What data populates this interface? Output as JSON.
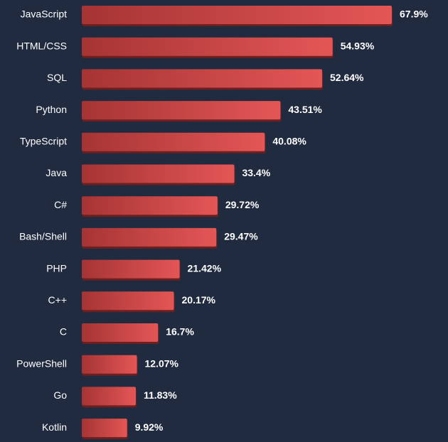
{
  "colors": {
    "background": "#212b40",
    "bar_start": "#a63434",
    "bar_end": "#e45656",
    "bar_shadow": "#6e1f1f",
    "text": "#ffffff"
  },
  "chart_data": {
    "type": "bar",
    "orientation": "horizontal",
    "title": "",
    "xlabel": "",
    "ylabel": "",
    "xlim": [
      0,
      67.9
    ],
    "grid": false,
    "legend": "none",
    "categories": [
      "JavaScript",
      "HTML/CSS",
      "SQL",
      "Python",
      "TypeScript",
      "Java",
      "C#",
      "Bash/Shell",
      "PHP",
      "C++",
      "C",
      "PowerShell",
      "Go",
      "Kotlin"
    ],
    "values": [
      67.9,
      54.93,
      52.64,
      43.51,
      40.08,
      33.4,
      29.72,
      29.47,
      21.42,
      20.17,
      16.7,
      12.07,
      11.83,
      9.92
    ],
    "value_labels": [
      "67.9%",
      "54.93%",
      "52.64%",
      "43.51%",
      "40.08%",
      "33.4%",
      "29.72%",
      "29.47%",
      "21.42%",
      "20.17%",
      "16.7%",
      "12.07%",
      "11.83%",
      "9.92%"
    ]
  }
}
